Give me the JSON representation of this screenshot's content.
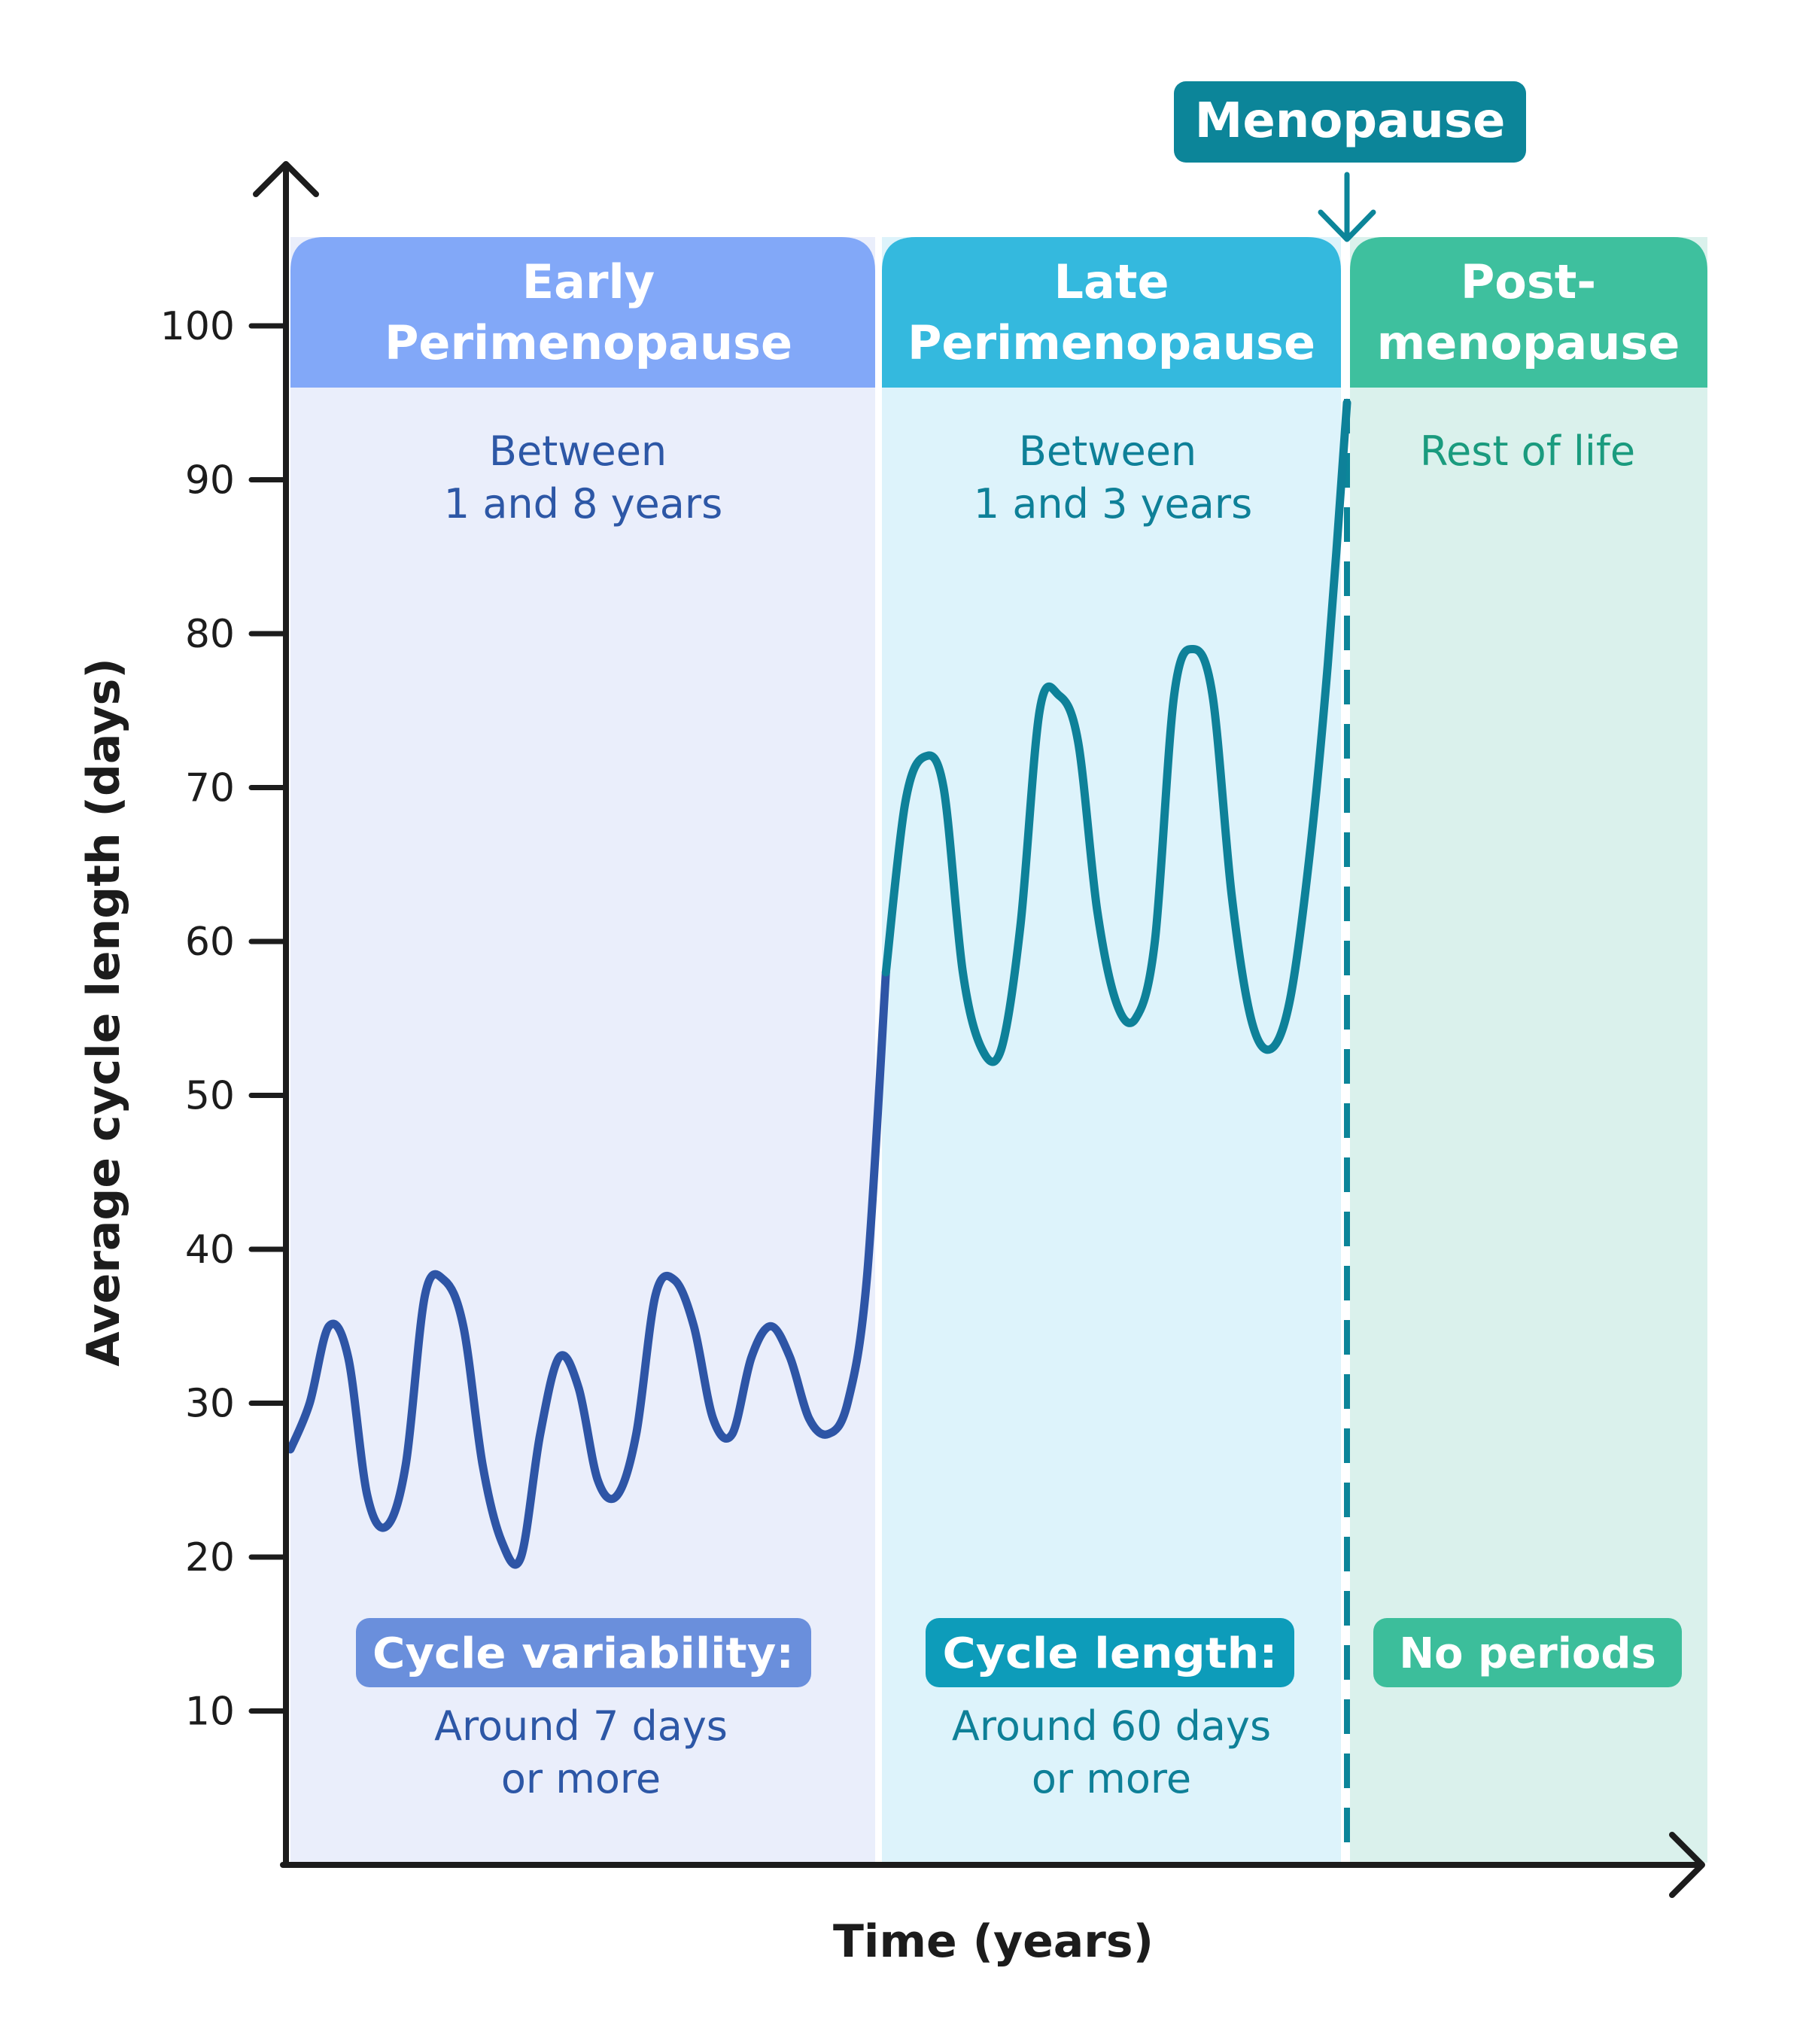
{
  "chart_data": {
    "type": "line",
    "xlabel": "Time (years)",
    "ylabel": "Average cycle length (days)",
    "ylim": [
      0,
      100
    ],
    "yticks": [
      10,
      20,
      30,
      40,
      50,
      60,
      70,
      80,
      90,
      100
    ],
    "grid": false,
    "menopause_label": "Menopause",
    "phases": [
      {
        "title_line1": "Early",
        "title_line2": "Perimenopause",
        "duration_line1": "Between",
        "duration_line2": "1 and 8 years",
        "badge": "Cycle variability:",
        "note_line1": "Around 7 days",
        "note_line2": "or more"
      },
      {
        "title_line1": "Late",
        "title_line2": "Perimenopause",
        "duration_line1": "Between",
        "duration_line2": "1 and 3 years",
        "badge": "Cycle length:",
        "note_line1": "Around 60 days",
        "note_line2": "or more"
      },
      {
        "title_line1": "Post-",
        "title_line2": "menopause",
        "duration_line1": "Rest of life",
        "duration_line2": "",
        "badge": "No periods",
        "note_line1": "",
        "note_line2": ""
      }
    ],
    "series": [
      {
        "values": [
          27,
          30,
          35,
          33,
          24,
          22,
          26,
          37,
          38,
          35,
          26,
          21,
          20,
          28,
          33,
          31,
          25,
          24,
          28,
          37,
          38,
          35,
          29,
          28,
          33,
          35,
          33,
          29,
          28,
          30,
          38,
          58,
          69,
          72,
          70,
          58,
          53,
          53,
          61,
          75,
          76,
          73,
          62,
          56,
          55,
          60,
          76,
          79,
          76,
          63,
          55,
          53,
          56,
          65,
          78,
          95
        ]
      }
    ]
  },
  "colors": {
    "early_header": "#82A8F8",
    "early_bg": "#EAEEFB",
    "early_text": "#2D57A6",
    "early_badge": "#6A8FDC",
    "early_line": "#2E55A6",
    "late_header": "#34B9DE",
    "late_bg": "#DDF3FB",
    "late_text": "#0E8098",
    "late_badge": "#0D9CBA",
    "late_line": "#0E8199",
    "post_header": "#3EC09E",
    "post_bg": "#DAF1EC",
    "post_text": "#1A9B7E",
    "post_badge": "#3CBE9B",
    "menopause": "#0C8599",
    "axis": "#1C1C1C"
  }
}
